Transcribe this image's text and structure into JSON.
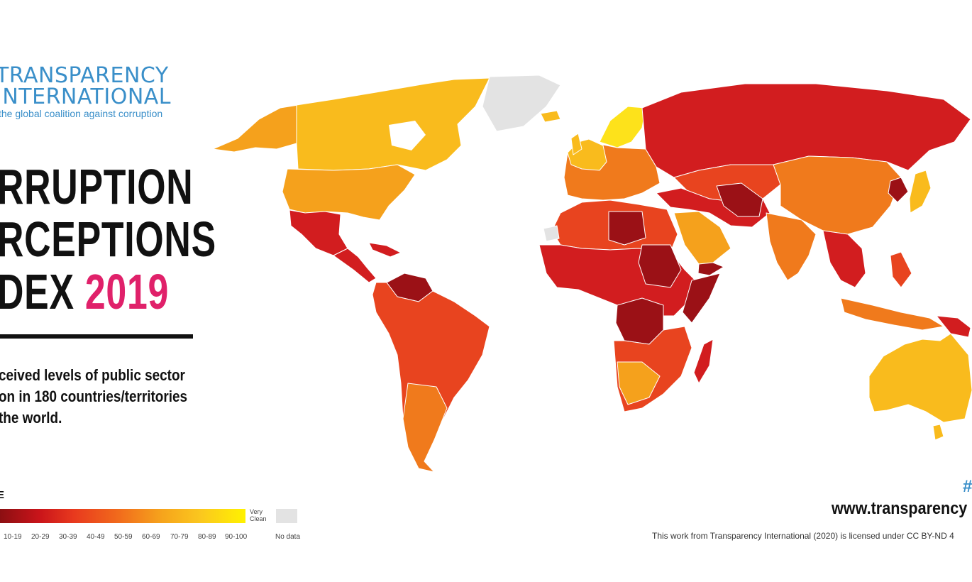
{
  "logo": {
    "line1": "TRANSPARENCY",
    "line2": "INTERNATIONAL",
    "tagline": "the global coalition against corruption"
  },
  "title": {
    "line1": "RRUPTION",
    "line2": "RCEPTIONS",
    "line3": "DEX ",
    "year": "2019"
  },
  "description": {
    "line1": "ceived levels of public sector",
    "line2": "on in 180 countries/territories",
    "line3": "the world."
  },
  "legend": {
    "title": "E",
    "ticks": [
      "10-19",
      "20-29",
      "30-39",
      "40-49",
      "50-59",
      "60-69",
      "70-79",
      "80-89",
      "90-100"
    ],
    "very_clean_l1": "Very",
    "very_clean_l2": "Clean",
    "no_data": "No data"
  },
  "footer": {
    "hashtag": "#",
    "url": "www.transparency",
    "license": "This work from Transparency International (2020) is licensed under CC BY-ND 4"
  },
  "colors": {
    "brand_blue": "#3a8fc9",
    "year_pink": "#e0216a",
    "no_data": "#e3e3e3",
    "dark_red": "#9b1116",
    "red": "#d21d1f",
    "red_orange": "#e8441f",
    "orange": "#f07a1c",
    "light_orange": "#f5a11c",
    "gold": "#f9bb1d",
    "yellow": "#fde21b"
  }
}
